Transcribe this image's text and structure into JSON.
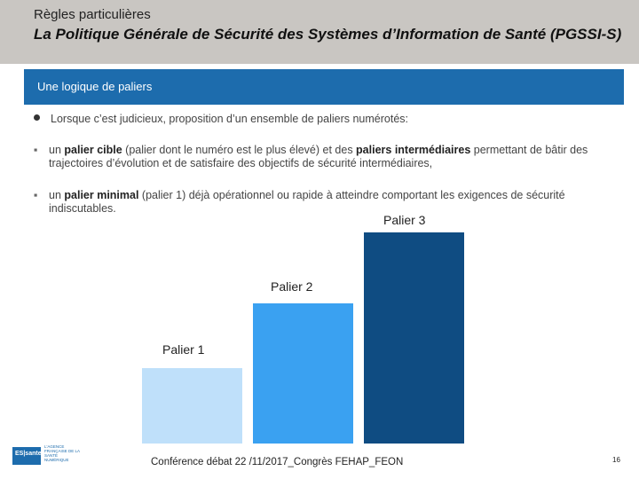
{
  "header": {
    "kicker": "Règles particulières",
    "title": "La Politique Générale de Sécurité des Systèmes d’Information de Santé (PGSSI-S)"
  },
  "band": {
    "title": "Une logique de paliers"
  },
  "intro": {
    "text": "Lorsque c’est judicieux, proposition d’un ensemble de paliers numérotés:"
  },
  "bullets": [
    {
      "marker": "▪",
      "t1": "un ",
      "b1": "palier cible",
      "t2": " (palier dont le numéro est le plus élevé) et des ",
      "b2": "paliers intermédiaires",
      "t3": " permettant de bâtir des trajectoires d’évolution et de satisfaire des objectifs de sécurité intermédiaires,"
    },
    {
      "marker": "▪",
      "t1": "un ",
      "b1": "palier minimal",
      "t2": " (palier 1) déjà opérationnel ou rapide à atteindre comportant les exigences de sécurité indiscutables."
    }
  ],
  "chart_data": {
    "type": "bar",
    "categories": [
      "Palier 1",
      "Palier 2",
      "Palier 3"
    ],
    "values": [
      1,
      2,
      3
    ],
    "colors": [
      "#bfe0fa",
      "#3aa1f1",
      "#0f4c82"
    ]
  },
  "logo": {
    "box_text": "ES|sante",
    "side_text": "L'AGENCE FRANÇAISE DE LA SANTÉ NUMÉRIQUE"
  },
  "footer": {
    "text": "Conférence débat 22 /11/2017_Congrès FEHAP_FEON",
    "page": "16"
  }
}
